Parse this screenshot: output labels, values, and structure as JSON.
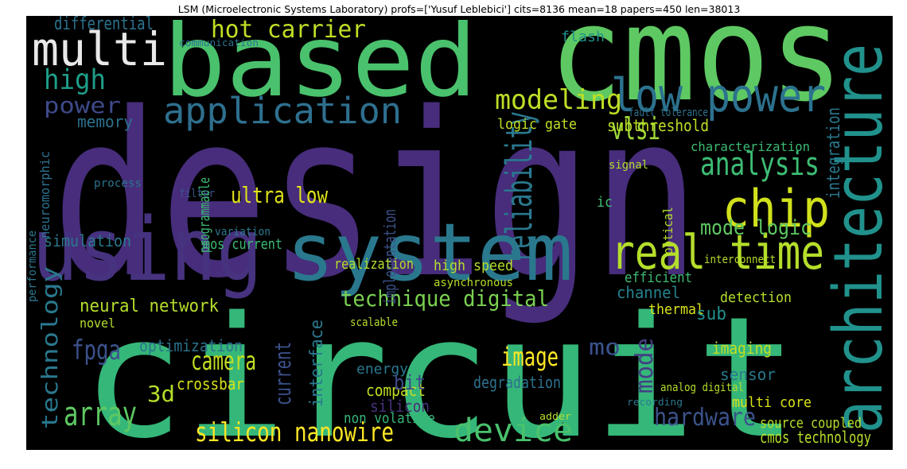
{
  "chart_data": {
    "type": "wordcloud",
    "title": "LSM (Microelectronic Systems Laboratory) profs=['Yusuf Leblebici'] cits=8136 mean=18 papers=450 len=38013",
    "background": "#000000",
    "words": [
      "design",
      "circuit",
      "cmos",
      "based",
      "architecture",
      "using",
      "system",
      "real time",
      "low power",
      "chip",
      "multi",
      "application",
      "hot carrier",
      "reliability",
      "analysis",
      "modeling",
      "vlsi",
      "high",
      "power",
      "array",
      "silicon nanowire",
      "device",
      "hardware",
      "camera",
      "image",
      "technique digital",
      "technology",
      "neural network",
      "fpga",
      "differential",
      "mode logic",
      "ultra low",
      "cmos technology",
      "source coupled",
      "subthreshold",
      "interface",
      "current",
      "mode",
      "implementation",
      "integration",
      "optimization",
      "crossbar",
      "3d",
      "simulation",
      "memory",
      "programmable",
      "high speed",
      "compact",
      "energy",
      "degradation",
      "imaging",
      "sensor",
      "channel",
      "detection",
      "thermal",
      "sub",
      "efficient",
      "characterization",
      "flash",
      "neuromorphic",
      "realization",
      "mos current",
      "novel",
      "silicon",
      "non volatile",
      "bit",
      "mo",
      "multi core",
      "analog digital",
      "fault tolerance",
      "interconnect",
      "asynchronous",
      "variation",
      "filter",
      "process",
      "performance",
      "scalable",
      "logic gate",
      "communication",
      "adder",
      "recording",
      "ic",
      "signal",
      "optical"
    ],
    "colors": [
      "#472d7b",
      "#35b779",
      "#5ec962",
      "#4ac16d",
      "#21918c",
      "#46327e",
      "#2a788e",
      "#b5de2b",
      "#2c728e",
      "#d0e11c",
      "#e8e8e8",
      "#2e6f8e",
      "#c0df25",
      "#2a788e",
      "#3dbc74",
      "#bddf26",
      "#a0da39",
      "#1f9e89",
      "#3e4a89",
      "#5ec962",
      "#fde725",
      "#4ac16d",
      "#3b528b",
      "#c2df23",
      "#fde725",
      "#7ad151",
      "#2a788e",
      "#b5de2b",
      "#3b528b",
      "#2c728e",
      "#5ec962",
      "#e2e418",
      "#b5de2b",
      "#b5de2b",
      "#bddf26",
      "#2a788e",
      "#3b528b",
      "#433e85",
      "#3b528b",
      "#2a788e",
      "#2c728e",
      "#d8e219",
      "#b5de2b",
      "#2a788e",
      "#2c728e",
      "#3dbc74",
      "#b5de2b",
      "#c2df23",
      "#2a788e",
      "#2c728e",
      "#c0df25",
      "#2a788e",
      "#26828e",
      "#b5de2b",
      "#d8e219",
      "#21918c",
      "#3dbc74",
      "#3dbc74",
      "#21918c",
      "#2c728e",
      "#b5de2b",
      "#3dbc74",
      "#b5de2b",
      "#46327e",
      "#35b779",
      "#3e4a89",
      "#3b528b",
      "#d8e219",
      "#b5de2b",
      "#2c728e",
      "#b5de2b",
      "#b5de2b",
      "#2a788e",
      "#3b528b",
      "#2c728e",
      "#2a788e",
      "#b5de2b",
      "#c0df25",
      "#2c728e",
      "#b5de2b",
      "#2a788e",
      "#3dbc74",
      "#b5de2b",
      "#b5de2b"
    ]
  }
}
